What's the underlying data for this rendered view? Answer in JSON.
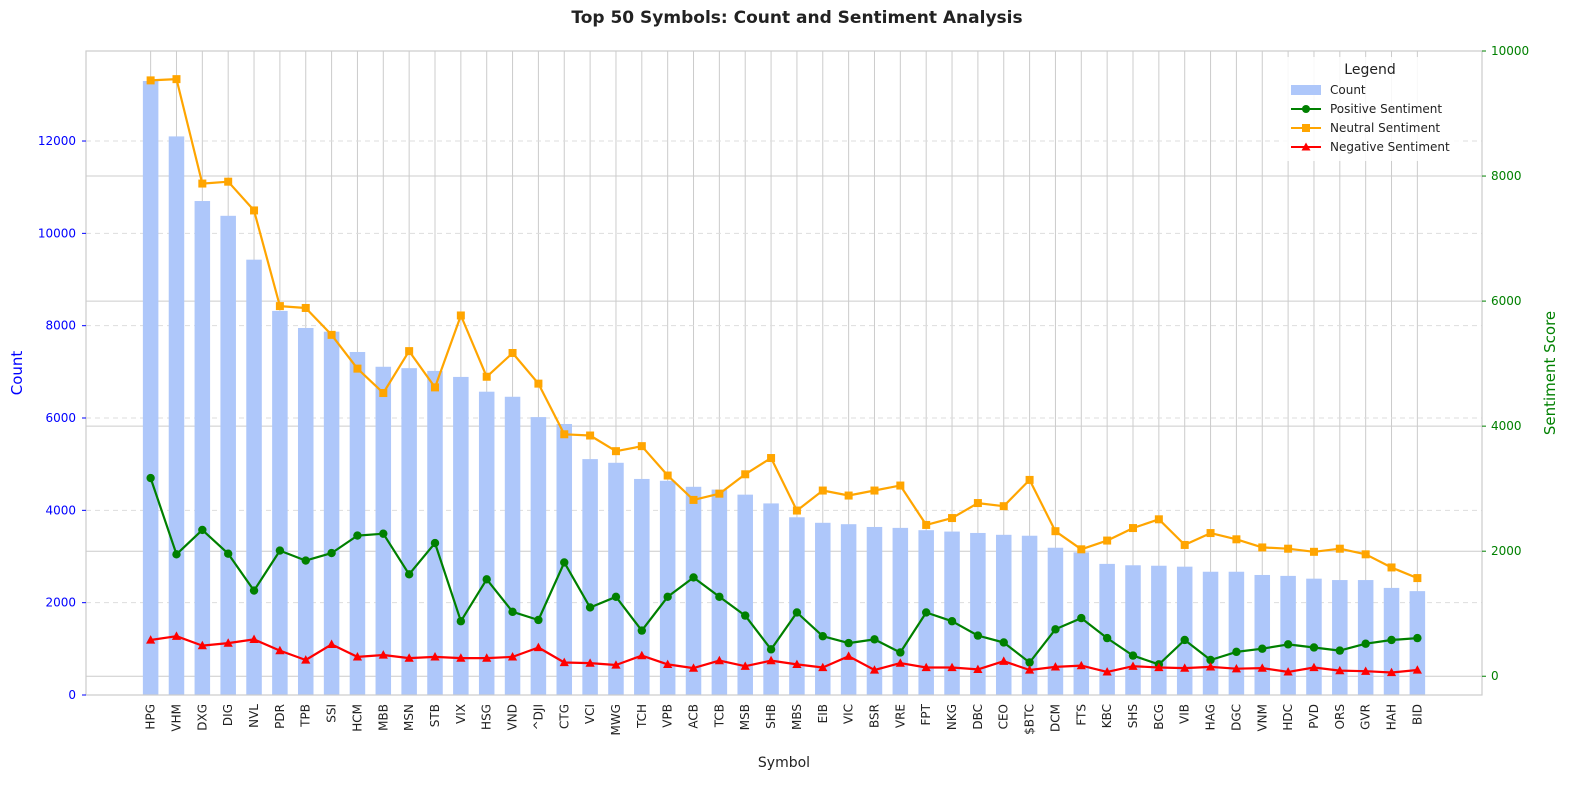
{
  "chart_data": {
    "type": "bar",
    "title": "Top 50 Symbols: Count and Sentiment Analysis",
    "xlabel": "Symbol",
    "ylabel_left": "Count",
    "ylabel_right": "Sentiment Score",
    "ylim_left": [
      0,
      13950
    ],
    "ylim_right": [
      -300,
      10000
    ],
    "left_ticks": [
      0,
      2000,
      4000,
      6000,
      8000,
      10000,
      12000
    ],
    "right_ticks": [
      0,
      2000,
      4000,
      6000,
      8000,
      10000
    ],
    "grid": true,
    "legend": {
      "title": "Legend",
      "placement": "top-right",
      "entries": [
        "Count",
        "Positive Sentiment",
        "Neutral Sentiment",
        "Negative Sentiment"
      ]
    },
    "colors": {
      "count": "#aec7fa",
      "positive": "#008000",
      "neutral": "#ffa500",
      "negative": "#ff0000",
      "left_axis": "#0000ff",
      "right_axis": "#008000"
    },
    "categories": [
      "HPG",
      "VHM",
      "DXG",
      "DIG",
      "NVL",
      "PDR",
      "TPB",
      "SSI",
      "HCM",
      "MBB",
      "MSN",
      "STB",
      "VIX",
      "HSG",
      "VND",
      "^DJI",
      "CTG",
      "VCI",
      "MWG",
      "TCH",
      "VPB",
      "ACB",
      "TCB",
      "MSB",
      "SHB",
      "MBS",
      "EIB",
      "VIC",
      "BSR",
      "VRE",
      "FPT",
      "NKG",
      "DBC",
      "CEO",
      "$BTC",
      "DCM",
      "FTS",
      "KBC",
      "SHS",
      "BCG",
      "VIB",
      "HAG",
      "DGC",
      "VNM",
      "HDC",
      "PVD",
      "ORS",
      "GVR",
      "HAH",
      "BID"
    ],
    "series": [
      {
        "name": "Count",
        "type": "bar",
        "axis": "left",
        "values": [
          13300,
          12100,
          10700,
          10380,
          9430,
          8320,
          7950,
          7870,
          7430,
          7110,
          7080,
          7020,
          6890,
          6570,
          6460,
          6020,
          5870,
          5110,
          5030,
          4680,
          4640,
          4510,
          4450,
          4340,
          4150,
          3850,
          3730,
          3700,
          3640,
          3620,
          3570,
          3540,
          3510,
          3470,
          3450,
          3190,
          3090,
          2840,
          2810,
          2800,
          2780,
          2670,
          2670,
          2600,
          2580,
          2520,
          2490,
          2490,
          2320,
          2250
        ]
      },
      {
        "name": "Positive Sentiment",
        "type": "line",
        "axis": "right",
        "marker": "circle",
        "values": [
          3170,
          1950,
          2340,
          1960,
          1370,
          2010,
          1850,
          1970,
          2250,
          2280,
          1630,
          2130,
          880,
          1550,
          1030,
          900,
          1820,
          1100,
          1270,
          730,
          1270,
          1580,
          1270,
          970,
          430,
          1020,
          640,
          530,
          590,
          380,
          1020,
          880,
          650,
          540,
          220,
          750,
          930,
          610,
          330,
          190,
          580,
          260,
          390,
          440,
          510,
          460,
          410,
          520,
          580,
          610
        ]
      },
      {
        "name": "Neutral Sentiment",
        "type": "line",
        "axis": "right",
        "marker": "square",
        "values": [
          9530,
          9550,
          7880,
          7910,
          7450,
          5920,
          5890,
          5460,
          4920,
          4530,
          5200,
          4620,
          5770,
          4790,
          5170,
          4680,
          3870,
          3850,
          3600,
          3680,
          3210,
          2820,
          2920,
          3230,
          3490,
          2650,
          2970,
          2890,
          2970,
          3050,
          2420,
          2530,
          2770,
          2720,
          3140,
          2320,
          2030,
          2170,
          2370,
          2510,
          2100,
          2290,
          2190,
          2060,
          2040,
          1990,
          2040,
          1950,
          1740,
          1570
        ]
      },
      {
        "name": "Negative Sentiment",
        "type": "line",
        "axis": "right",
        "marker": "triangle",
        "values": [
          580,
          640,
          490,
          530,
          590,
          410,
          260,
          510,
          310,
          340,
          290,
          310,
          290,
          290,
          310,
          460,
          220,
          210,
          180,
          330,
          190,
          130,
          250,
          160,
          250,
          190,
          140,
          320,
          100,
          210,
          140,
          140,
          110,
          240,
          100,
          150,
          170,
          70,
          160,
          140,
          130,
          150,
          120,
          130,
          70,
          140,
          90,
          80,
          60,
          100
        ]
      }
    ]
  }
}
